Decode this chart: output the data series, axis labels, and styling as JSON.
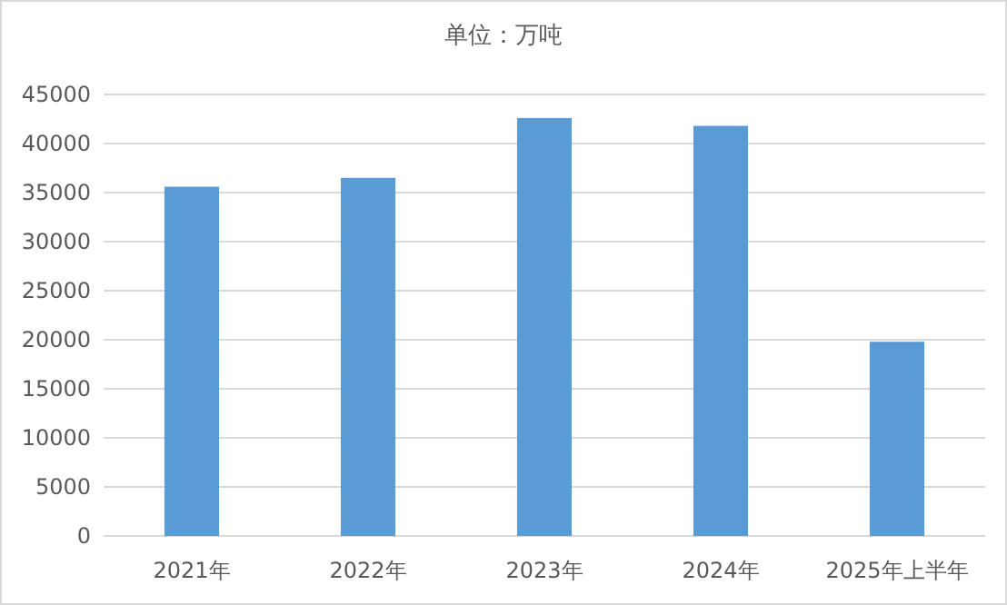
{
  "chart_data": {
    "type": "bar",
    "title": "单位：万吨",
    "categories": [
      "2021年",
      "2022年",
      "2023年",
      "2024年",
      "2025年上半年"
    ],
    "series": [
      {
        "color": "#5b9bd5",
        "values": [
          35600,
          36500,
          42600,
          41800,
          19800
        ]
      }
    ],
    "ylim": [
      0,
      45000
    ],
    "yticks": [
      0,
      5000,
      10000,
      15000,
      20000,
      25000,
      30000,
      35000,
      40000,
      45000
    ],
    "grid": "y"
  }
}
